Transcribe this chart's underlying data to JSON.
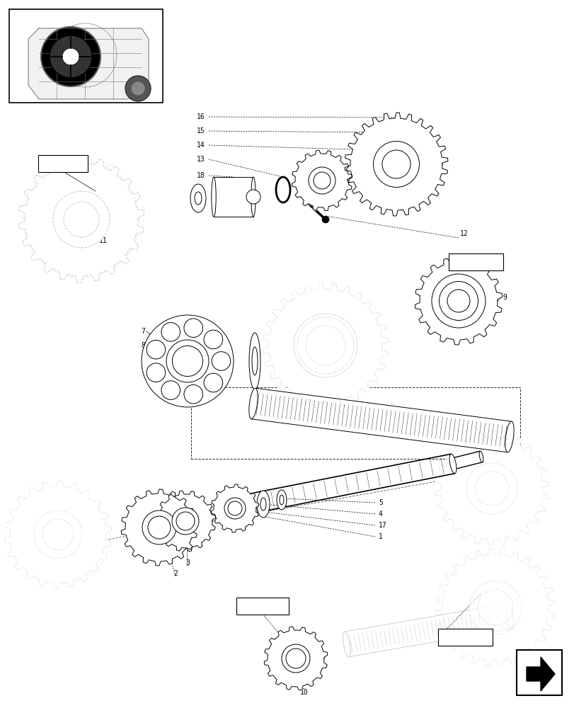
{
  "bg_color": "#ffffff",
  "lc": "#000000",
  "lgc": "#bbbbbb",
  "figure_width": 8.12,
  "figure_height": 10.0,
  "dpi": 100,
  "fs": 7.0
}
